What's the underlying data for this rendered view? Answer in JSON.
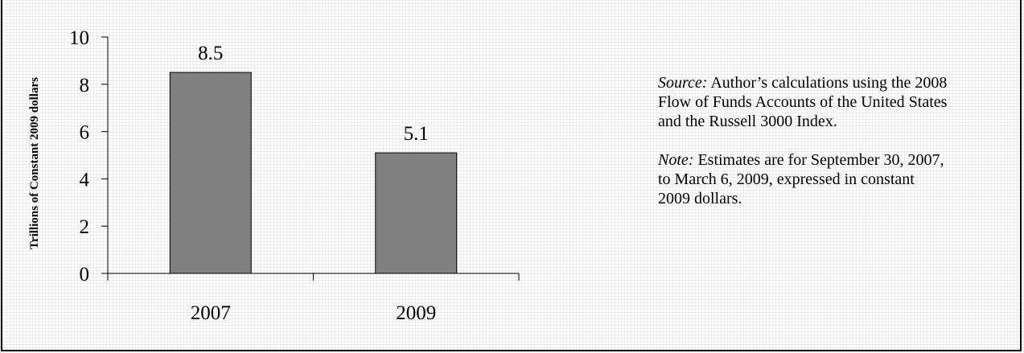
{
  "chart_data": {
    "type": "bar",
    "categories": [
      "2007",
      "2009"
    ],
    "values": [
      8.5,
      5.1
    ],
    "data_labels": [
      "8.5",
      "5.1"
    ],
    "ylabel": "Trillions of Constant 2009 dollars",
    "xlabel": "",
    "ylim": [
      0,
      10
    ],
    "yticks": [
      "0",
      "2",
      "4",
      "6",
      "8",
      "10"
    ],
    "grid": false,
    "bar_color": "#808080"
  },
  "notes": {
    "source_lead": "Source:",
    "source_text": " Author’s calculations using the 2008 Flow of Funds Accounts of the United States and the Russell 3000 Index.",
    "note_lead": "Note:",
    "note_text": " Estimates are for September 30, 2007, to March 6, 2009, expressed in constant 2009 dollars."
  }
}
